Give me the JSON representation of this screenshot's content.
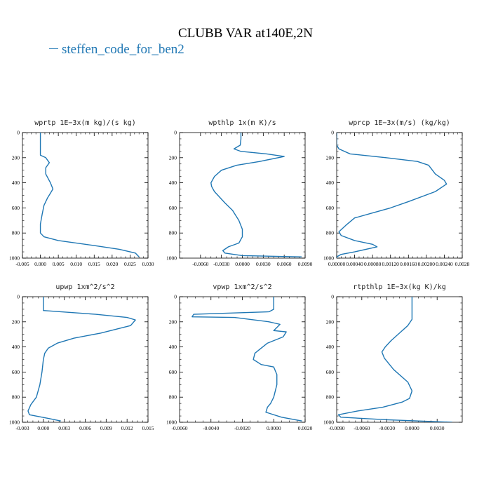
{
  "figure": {
    "title": "CLUBB VAR at140E,2N",
    "legend_label": "steffen_code_for_ben2",
    "line_color": "#1f77b4"
  },
  "chart_data": [
    {
      "type": "line",
      "title": "wprtp   1E−3x(m kg)/(s kg)",
      "xlim": [
        -0.005,
        0.03
      ],
      "ylim": [
        1000,
        0
      ],
      "xticks": [
        -0.005,
        0.0,
        0.005,
        0.01,
        0.015,
        0.02,
        0.025,
        0.03
      ],
      "xtick_labels": [
        "-0.005",
        "0.000",
        "0.005",
        "0.010",
        "0.015",
        "0.020",
        "0.025",
        "0.030"
      ],
      "yticks": [
        0,
        200,
        400,
        600,
        800,
        1000
      ],
      "ytick_labels": [
        "0",
        "200",
        "400",
        "600",
        "800",
        "1000"
      ],
      "series": [
        {
          "x": [
            0.0,
            0.0,
            0.0,
            0.0,
            0.0015,
            0.0025,
            0.0015,
            0.0015,
            0.0028,
            0.0035,
            0.002,
            0.001,
            0.0005,
            0.0,
            0.0,
            0.001,
            0.005,
            0.015,
            0.022,
            0.0265,
            0.0275
          ],
          "y": [
            0,
            50,
            100,
            180,
            200,
            240,
            280,
            330,
            400,
            450,
            520,
            580,
            650,
            730,
            800,
            830,
            860,
            900,
            930,
            960,
            990
          ]
        }
      ]
    },
    {
      "type": "line",
      "title": "wpthlp   1x(m K)/s",
      "xlim": [
        -0.009,
        0.009
      ],
      "ylim": [
        1000,
        0
      ],
      "xticks": [
        -0.006,
        -0.003,
        0.0,
        0.003,
        0.006,
        0.009
      ],
      "xtick_labels": [
        "-0.0060",
        "-0.0030",
        "0.0000",
        "0.0030",
        "0.0060",
        "0.0090"
      ],
      "yticks": [
        0,
        200,
        400,
        600,
        800,
        1000
      ],
      "ytick_labels": [
        "0",
        "200",
        "400",
        "600",
        "800",
        "1000"
      ],
      "series": [
        {
          "x": [
            -0.0002,
            -0.0002,
            -0.0003,
            -0.0012,
            -0.0002,
            0.0035,
            0.006,
            0.0025,
            -0.0008,
            -0.003,
            -0.004,
            -0.0045,
            -0.0044,
            -0.004,
            -0.0025,
            -0.0014,
            -0.0005,
            0.0,
            0.0,
            -0.0005,
            -0.002,
            -0.0028,
            -0.0025,
            0.0,
            0.0085
          ],
          "y": [
            0,
            50,
            100,
            130,
            150,
            170,
            190,
            230,
            260,
            300,
            350,
            400,
            430,
            470,
            560,
            620,
            700,
            770,
            830,
            880,
            910,
            940,
            960,
            980,
            990
          ]
        }
      ]
    },
    {
      "type": "line",
      "title": "wprcp   1E−3x(m/s) (kg/kg)",
      "xlim": [
        0.0,
        0.0028
      ],
      "ylim": [
        1000,
        0
      ],
      "xticks": [
        0.0,
        0.0004,
        0.0008,
        0.0012,
        0.0016,
        0.002,
        0.0024,
        0.0028
      ],
      "xtick_labels": [
        "0.00000",
        "0.00040",
        "0.00080",
        "0.00120",
        "0.00160",
        "0.00200",
        "0.00240",
        "0.0028"
      ],
      "yticks": [
        0,
        200,
        400,
        600,
        800,
        1000
      ],
      "ytick_labels": [
        "0",
        "200",
        "400",
        "600",
        "800",
        "1000"
      ],
      "series": [
        {
          "x": [
            0.0,
            0.0,
            0.0,
            5e-05,
            0.0003,
            0.0011,
            0.0018,
            0.00205,
            0.0022,
            0.0024,
            0.00245,
            0.0022,
            0.0016,
            0.0012,
            0.0008,
            0.0004,
            0.0002,
            5e-05,
            0.0001,
            0.0004,
            0.0008,
            0.0009,
            0.0004,
            0.0001,
            0.0,
            0.0
          ],
          "y": [
            0,
            50,
            100,
            130,
            170,
            200,
            230,
            260,
            330,
            380,
            410,
            470,
            550,
            600,
            640,
            680,
            740,
            790,
            820,
            860,
            890,
            910,
            950,
            970,
            990,
            1000
          ]
        }
      ]
    },
    {
      "type": "line",
      "title": "upwp   1xm^2/s^2",
      "xlim": [
        -0.003,
        0.015
      ],
      "ylim": [
        1000,
        0
      ],
      "xticks": [
        -0.003,
        0.0,
        0.003,
        0.006,
        0.009,
        0.012,
        0.015
      ],
      "xtick_labels": [
        "-0.003",
        "0.000",
        "0.003",
        "0.006",
        "0.009",
        "0.012",
        "0.015"
      ],
      "yticks": [
        0,
        200,
        400,
        600,
        800,
        1000
      ],
      "ytick_labels": [
        "0",
        "200",
        "400",
        "600",
        "800",
        "1000"
      ],
      "series": [
        {
          "x": [
            0.0,
            0.0,
            0.0,
            0.0,
            0.0075,
            0.012,
            0.0132,
            0.0125,
            0.0082,
            0.0044,
            0.002,
            0.0007,
            0.0002,
            0.0,
            -0.0002,
            -0.0005,
            -0.001,
            -0.0018,
            -0.0022,
            -0.002,
            0.0008,
            0.0025
          ],
          "y": [
            0,
            50,
            100,
            110,
            140,
            165,
            185,
            230,
            290,
            330,
            370,
            410,
            450,
            500,
            600,
            700,
            800,
            860,
            910,
            940,
            970,
            990
          ]
        }
      ]
    },
    {
      "type": "line",
      "title": "vpwp   1xm^2/s^2",
      "xlim": [
        -0.006,
        0.002
      ],
      "ylim": [
        1000,
        0
      ],
      "xticks": [
        -0.006,
        -0.004,
        -0.002,
        0.0,
        0.002
      ],
      "xtick_labels": [
        "-0.0060",
        "-0.0040",
        "-0.0020",
        "0.0000",
        "0.0020"
      ],
      "yticks": [
        0,
        200,
        400,
        600,
        800,
        1000
      ],
      "ytick_labels": [
        "0",
        "200",
        "400",
        "600",
        "800",
        "1000"
      ],
      "series": [
        {
          "x": [
            0.0,
            0.0,
            0.0,
            -0.0003,
            -0.0051,
            -0.0052,
            -0.0025,
            -0.0003,
            0.0004,
            0.0,
            0.0008,
            0.0006,
            -0.0004,
            -0.0012,
            -0.0013,
            -0.0008,
            0.0,
            0.0002,
            0.0002,
            0.0,
            -0.0002,
            -0.0004,
            -0.0005,
            0.0005,
            0.0018
          ],
          "y": [
            0,
            50,
            100,
            120,
            140,
            160,
            165,
            200,
            220,
            270,
            280,
            320,
            370,
            450,
            500,
            540,
            560,
            620,
            700,
            800,
            850,
            880,
            920,
            960,
            990
          ]
        }
      ]
    },
    {
      "type": "line",
      "title": "rtpthlp   1E−3x(kg K)/kg",
      "xlim": [
        -0.009,
        0.006
      ],
      "ylim": [
        1000,
        0
      ],
      "xticks": [
        -0.009,
        -0.006,
        -0.003,
        0.0,
        0.003
      ],
      "xtick_labels": [
        "-0.0090",
        "-0.0060",
        "-0.0030",
        "0.0000",
        "0.0030"
      ],
      "yticks": [
        0,
        200,
        400,
        600,
        800,
        1000
      ],
      "ytick_labels": [
        "0",
        "200",
        "400",
        "600",
        "800",
        "1000"
      ],
      "series": [
        {
          "x": [
            0.0,
            0.0,
            0.0,
            -0.0005,
            -0.0015,
            -0.0025,
            -0.0032,
            -0.0036,
            -0.0033,
            -0.0022,
            -0.0005,
            0.0,
            -0.0003,
            -0.0012,
            -0.0035,
            -0.0065,
            -0.0088,
            -0.0085,
            -0.003,
            0.0048
          ],
          "y": [
            0,
            100,
            180,
            230,
            290,
            350,
            400,
            440,
            490,
            580,
            680,
            750,
            810,
            840,
            880,
            910,
            940,
            960,
            980,
            1000
          ]
        }
      ]
    }
  ]
}
